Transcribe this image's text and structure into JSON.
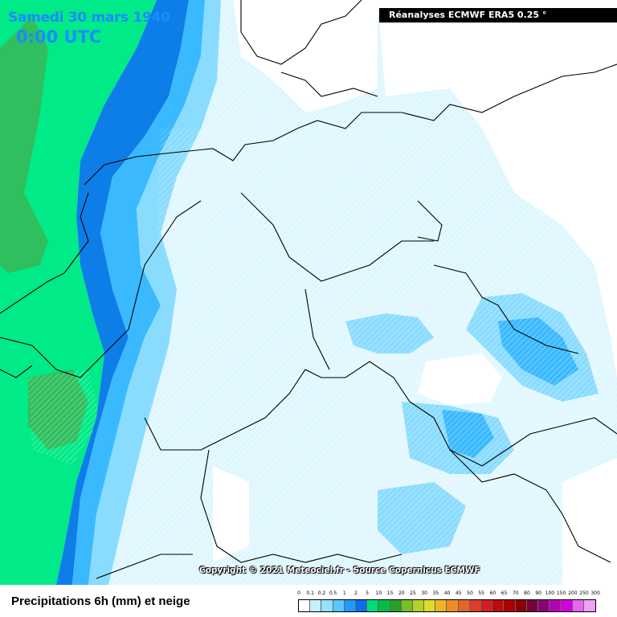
{
  "map": {
    "date_title": "Samedi 30 mars 1940",
    "time_title": "0:00 UTC",
    "header": "Réanalyses ECMWF ERA5 0.25 °",
    "copyright": "Copyright © 2021 Meteociel.fr - Source Copernicus ECMWF"
  },
  "legend": {
    "title": "Precipitations 6h (mm) et neige",
    "ticks": [
      "0",
      "0.1",
      "0.2",
      "0.5",
      "1",
      "2",
      "5",
      "10",
      "15",
      "20",
      "25",
      "30",
      "35",
      "40",
      "45",
      "50",
      "55",
      "60",
      "65",
      "70",
      "80",
      "90",
      "100",
      "150",
      "200",
      "250",
      "300"
    ],
    "colors": [
      "#ffffff",
      "#c8f0ff",
      "#96e1ff",
      "#5ac8ff",
      "#1e9bff",
      "#0a6eeb",
      "#00dc78",
      "#00be46",
      "#28a028",
      "#78be28",
      "#b4d228",
      "#dcdc28",
      "#f0b428",
      "#f08c28",
      "#e66428",
      "#dc3c28",
      "#d21e1e",
      "#be0a0a",
      "#aa0000",
      "#8c0000",
      "#78003c",
      "#8c0078",
      "#b400b4",
      "#d200dc",
      "#e664f0",
      "#f0a0f5"
    ]
  },
  "colors": {
    "sea_green": "#00ea88",
    "deep_green": "#2fbf5e",
    "blue_dark": "#0d7ee8",
    "blue_mid": "#3ab9ff",
    "blue_light": "#8adcff",
    "blue_pale": "#d8f6ff",
    "border": "#000000"
  }
}
